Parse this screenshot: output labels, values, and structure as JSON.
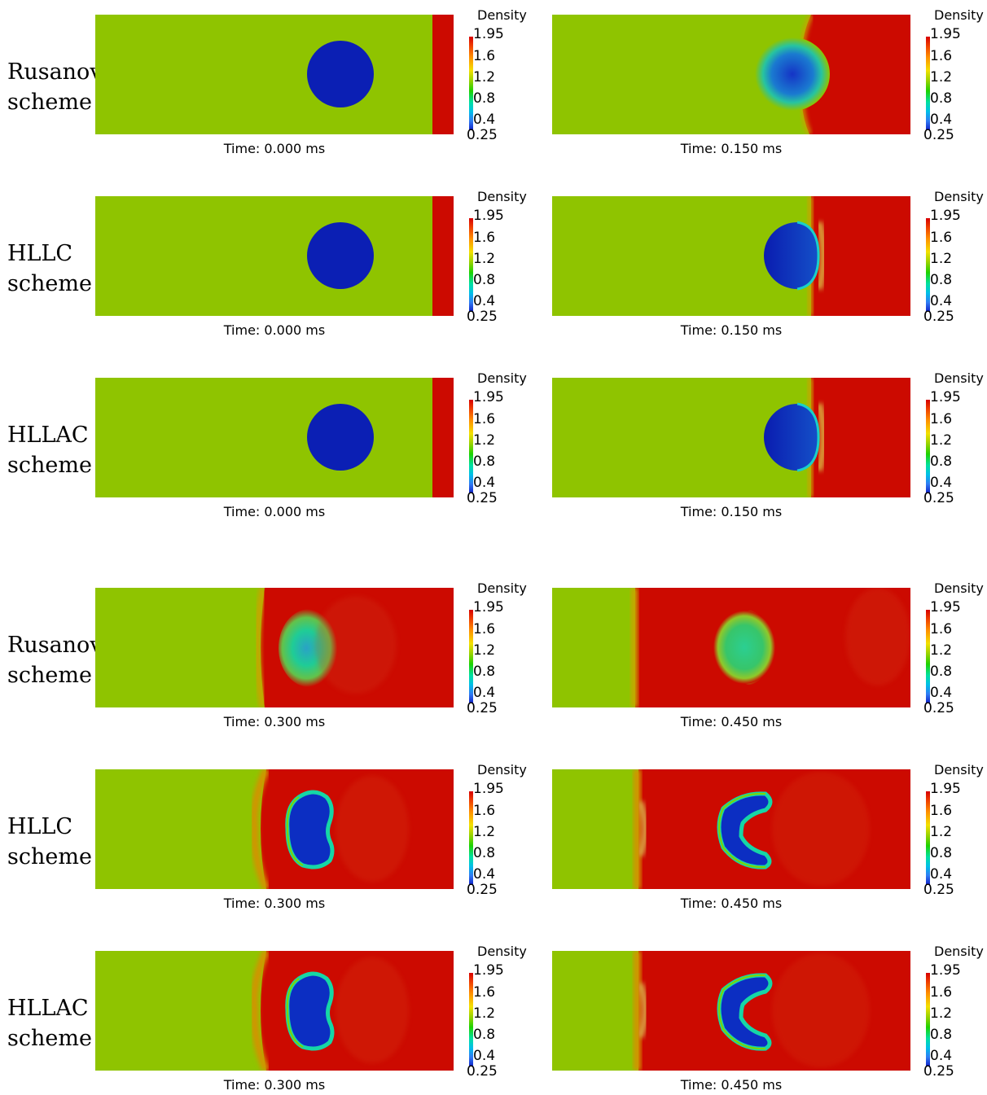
{
  "figure": {
    "rows": [
      {
        "label_line1": "Rusanov",
        "label_line2": "scheme",
        "panels": [
          {
            "time": "Time: 0.000 ms"
          },
          {
            "time": "Time: 0.150 ms"
          }
        ]
      },
      {
        "label_line1": "HLLC",
        "label_line2": "scheme",
        "panels": [
          {
            "time": "Time: 0.000 ms"
          },
          {
            "time": "Time: 0.150 ms"
          }
        ]
      },
      {
        "label_line1": "HLLAC",
        "label_line2": "scheme",
        "panels": [
          {
            "time": "Time: 0.000 ms"
          },
          {
            "time": "Time: 0.150 ms"
          }
        ]
      },
      {
        "label_line1": "Rusanov",
        "label_line2": "scheme",
        "panels": [
          {
            "time": "Time: 0.300 ms"
          },
          {
            "time": "Time: 0.450 ms"
          }
        ]
      },
      {
        "label_line1": "HLLC",
        "label_line2": "scheme",
        "panels": [
          {
            "time": "Time: 0.300 ms"
          },
          {
            "time": "Time: 0.450 ms"
          }
        ]
      },
      {
        "label_line1": "HLLAC",
        "label_line2": "scheme",
        "panels": [
          {
            "time": "Time: 0.300 ms"
          },
          {
            "time": "Time: 0.450 ms"
          }
        ]
      }
    ],
    "colorbar": {
      "title": "Density",
      "ticks": [
        "1.95",
        "1.6",
        "1.2",
        "0.8",
        "0.4",
        "0.25"
      ]
    },
    "colors": {
      "ambient_gas": "#8fc400",
      "shocked_gas": "#cc0a00",
      "bubble": "#0b1fb4",
      "bubble_rim": "#00c8b4"
    }
  }
}
